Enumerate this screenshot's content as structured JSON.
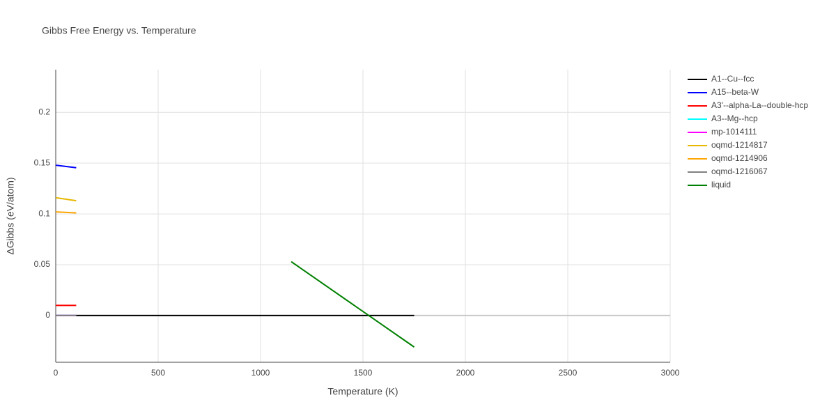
{
  "chart_data": {
    "type": "line",
    "title": "Gibbs Free Energy vs. Temperature",
    "x_label": "Temperature (K)",
    "y_label": "ΔGibbs (eV/atom)",
    "xlim": [
      0,
      3000
    ],
    "xticks": [
      0,
      500,
      1000,
      1500,
      2000,
      2500,
      3000
    ],
    "ylim": [
      -0.046,
      0.242
    ],
    "yticks": [
      0,
      0.05,
      0.1,
      0.15,
      0.2
    ],
    "grid": true,
    "series": [
      {
        "name": "A1--Cu--fcc",
        "color": "#000000",
        "x": [
          0,
          1750
        ],
        "values": [
          0,
          0
        ]
      },
      {
        "name": "A15--beta-W",
        "color": "#0000ff",
        "x": [
          0,
          100
        ],
        "values": [
          0.148,
          0.1455
        ]
      },
      {
        "name": "A3'--alpha-La--double-hcp",
        "color": "#ff0000",
        "x": [
          0,
          100
        ],
        "values": [
          0.01,
          0.01
        ]
      },
      {
        "name": "A3--Mg--hcp",
        "color": "#00ffff",
        "x": [
          0,
          100
        ],
        "values": [
          0,
          0
        ]
      },
      {
        "name": "mp-1014111",
        "color": "#ff00ff",
        "x": [
          0,
          100
        ],
        "values": [
          0,
          0
        ]
      },
      {
        "name": "oqmd-1214817",
        "color": "#e6b800",
        "x": [
          0,
          100
        ],
        "values": [
          0.116,
          0.113
        ]
      },
      {
        "name": "oqmd-1214906",
        "color": "#ffa500",
        "x": [
          0,
          100
        ],
        "values": [
          0.102,
          0.101
        ]
      },
      {
        "name": "oqmd-1216067",
        "color": "#808080",
        "x": [
          0,
          100
        ],
        "values": [
          0,
          0
        ]
      },
      {
        "name": "liquid",
        "color": "#008000",
        "x": [
          1150,
          1750
        ],
        "values": [
          0.053,
          -0.031
        ]
      }
    ]
  }
}
